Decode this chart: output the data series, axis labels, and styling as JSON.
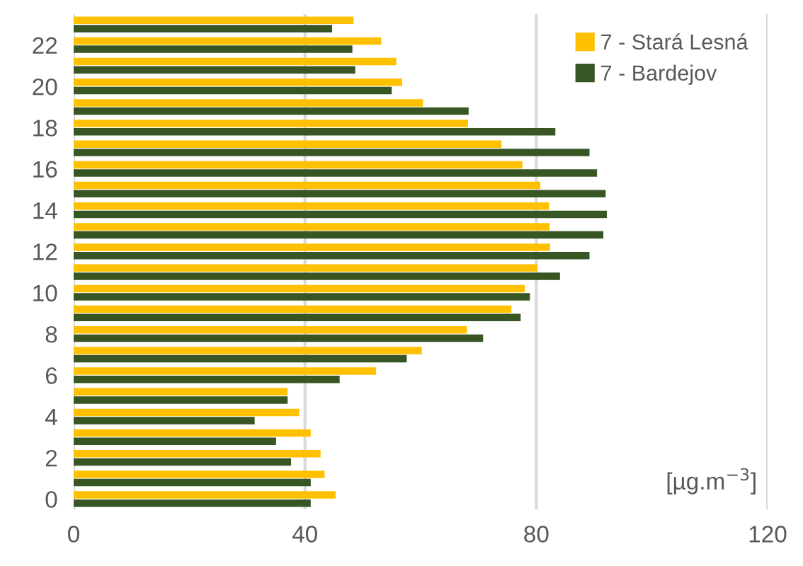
{
  "chart_data": {
    "type": "bar",
    "orientation": "horizontal",
    "categories": [
      null,
      "22",
      null,
      "20",
      null,
      "18",
      null,
      "16",
      null,
      "14",
      null,
      "12",
      null,
      "10",
      null,
      "8",
      null,
      "6",
      null,
      "4",
      null,
      "2",
      null,
      "0"
    ],
    "series": [
      {
        "name": "7 - Stará Lesná",
        "color": "#ffc000",
        "values": [
          48.4,
          53.2,
          55.8,
          56.8,
          60.4,
          68.2,
          74,
          77.6,
          80.7,
          82.2,
          82.3,
          82.4,
          80.2,
          78,
          75.7,
          68,
          60.2,
          52.3,
          37,
          39,
          41,
          42.7,
          43.4,
          45.3
        ]
      },
      {
        "name": "7 - Bardejov",
        "color": "#375623",
        "values": [
          44.7,
          48.2,
          48.7,
          55,
          68.3,
          83.3,
          89.2,
          90.5,
          92,
          92.2,
          91.6,
          89.2,
          84.1,
          78.9,
          77.3,
          70.8,
          57.6,
          46,
          37,
          31.3,
          35,
          37.6,
          41,
          41
        ]
      }
    ],
    "xlim": [
      0,
      120
    ],
    "xticks": [
      0,
      40,
      80,
      120
    ],
    "grid": "x",
    "legend": "top right",
    "annotations": [
      "[µg.m$^{−3}$]"
    ]
  }
}
